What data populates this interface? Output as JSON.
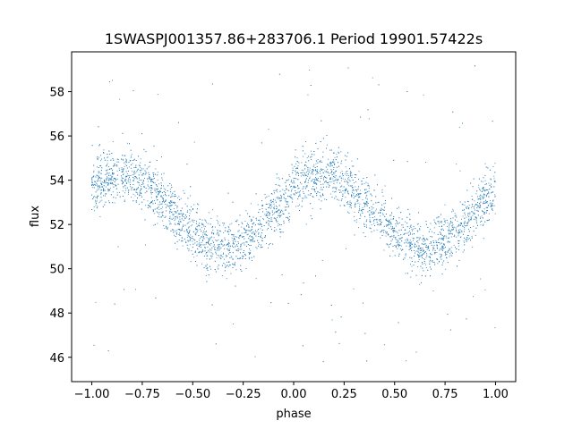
{
  "chart_data": {
    "type": "scatter",
    "title": "1SWASPJ001357.86+283706.1 Period 19901.57422s",
    "xlabel": "phase",
    "ylabel": "flux",
    "xlim": [
      -1.1,
      1.1
    ],
    "ylim": [
      44.9,
      59.8
    ],
    "xticks": [
      -1.0,
      -0.75,
      -0.5,
      -0.25,
      0.0,
      0.25,
      0.5,
      0.75,
      1.0
    ],
    "xtick_labels": [
      "−1.00",
      "−0.75",
      "−0.50",
      "−0.25",
      "0.00",
      "0.25",
      "0.50",
      "0.75",
      "1.00"
    ],
    "yticks": [
      46,
      48,
      50,
      52,
      54,
      56,
      58
    ],
    "ytick_labels": [
      "46",
      "48",
      "50",
      "52",
      "54",
      "56",
      "58"
    ],
    "grid": false,
    "marker_color": "#1f77b4",
    "series": [
      {
        "description": "phase-folded light curve, ~5000 points between phase −1 and 1",
        "model": {
          "type": "sinusoid",
          "mean": 52.6,
          "amplitude": 1.65,
          "period_in_phase": 1.0,
          "peak_phase": 0.15,
          "scatter_sigma": 0.6,
          "outlier_range": [
            45.6,
            59.2
          ],
          "outlier_fraction": 0.03
        },
        "values": [
          [
            -1.0,
            53.5
          ],
          [
            -0.9,
            54.3
          ],
          [
            -0.85,
            54.4
          ],
          [
            -0.8,
            54.2
          ],
          [
            -0.75,
            53.8
          ],
          [
            -0.7,
            53.3
          ],
          [
            -0.6,
            52.5
          ],
          [
            -0.5,
            51.6
          ],
          [
            -0.4,
            51.1
          ],
          [
            -0.35,
            51.0
          ],
          [
            -0.3,
            51.0
          ],
          [
            -0.25,
            51.1
          ],
          [
            -0.2,
            51.4
          ],
          [
            -0.1,
            52.4
          ],
          [
            0.0,
            53.4
          ],
          [
            0.1,
            54.1
          ],
          [
            0.15,
            54.3
          ],
          [
            0.2,
            54.2
          ],
          [
            0.25,
            54.0
          ],
          [
            0.3,
            53.6
          ],
          [
            0.4,
            52.6
          ],
          [
            0.5,
            51.8
          ],
          [
            0.6,
            51.1
          ],
          [
            0.65,
            51.0
          ],
          [
            0.7,
            51.0
          ],
          [
            0.75,
            51.2
          ],
          [
            0.8,
            51.6
          ],
          [
            0.9,
            52.5
          ],
          [
            1.0,
            53.5
          ]
        ]
      }
    ]
  }
}
